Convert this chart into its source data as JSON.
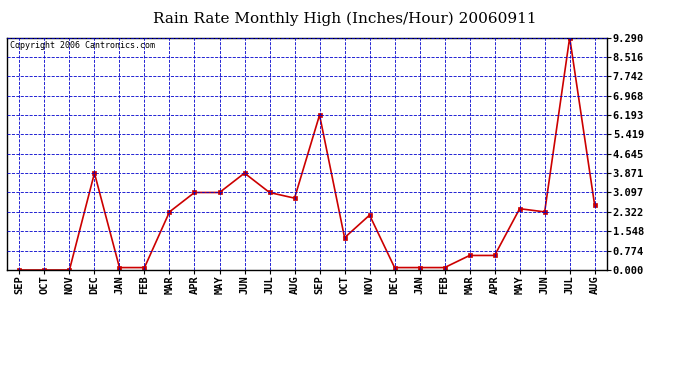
{
  "title": "Rain Rate Monthly High (Inches/Hour) 20060911",
  "copyright": "Copyright 2006 Cantronics.com",
  "months": [
    "SEP",
    "OCT",
    "NOV",
    "DEC",
    "JAN",
    "FEB",
    "MAR",
    "APR",
    "MAY",
    "JUN",
    "JUL",
    "AUG",
    "SEP",
    "OCT",
    "NOV",
    "DEC",
    "JAN",
    "FEB",
    "MAR",
    "APR",
    "MAY",
    "JUN",
    "JUL",
    "AUG"
  ],
  "values": [
    0.0,
    0.0,
    0.0,
    3.871,
    0.097,
    0.097,
    2.322,
    3.097,
    3.097,
    3.871,
    3.097,
    2.871,
    6.193,
    1.29,
    2.193,
    0.097,
    0.097,
    0.097,
    0.581,
    0.581,
    2.45,
    2.322,
    9.29,
    2.58
  ],
  "yticks": [
    0.0,
    0.774,
    1.548,
    2.322,
    3.097,
    3.871,
    4.645,
    5.419,
    6.193,
    6.968,
    7.742,
    8.516,
    9.29
  ],
  "ymax": 9.29,
  "ymin": 0.0,
  "line_color": "#cc0000",
  "marker_color": "#cc0000",
  "bg_color": "#ffffff",
  "plot_bg": "#ffffff",
  "grid_color": "#0000cc",
  "border_color": "#000000",
  "title_color": "#000000",
  "copyright_color": "#000000",
  "title_fontsize": 11,
  "tick_fontsize": 7.5,
  "ytick_fontsize": 7.5
}
